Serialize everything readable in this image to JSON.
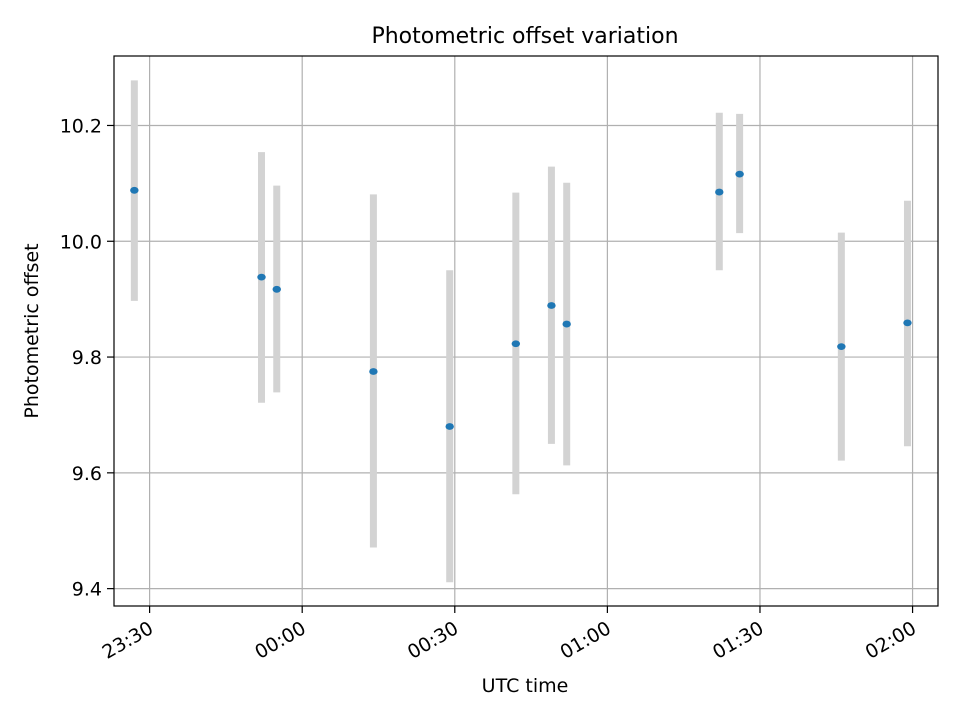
{
  "chart_data": {
    "type": "scatter",
    "title": "Photometric offset variation",
    "xlabel": "UTC time",
    "ylabel": "Photometric offset",
    "x_is_time": true,
    "xlim": [
      "23:23",
      "02:05"
    ],
    "ylim": [
      9.37,
      10.32
    ],
    "grid": true,
    "xticks": [
      {
        "value": "23:30",
        "label": "23:30"
      },
      {
        "value": "24:00",
        "label": "00:00"
      },
      {
        "value": "24:30",
        "label": "00:30"
      },
      {
        "value": "25:00",
        "label": "01:00"
      },
      {
        "value": "25:30",
        "label": "01:30"
      },
      {
        "value": "26:00",
        "label": "02:00"
      }
    ],
    "yticks": [
      9.4,
      9.6,
      9.8,
      10.0,
      10.2
    ],
    "ytick_labels": [
      "9.4",
      "9.6",
      "9.8",
      "10.0",
      "10.2"
    ],
    "points": [
      {
        "time": "23:27",
        "y": 10.088,
        "ylow": 9.897,
        "yhigh": 10.278
      },
      {
        "time": "23:52",
        "y": 9.938,
        "ylow": 9.721,
        "yhigh": 10.154
      },
      {
        "time": "23:55",
        "y": 9.917,
        "ylow": 9.739,
        "yhigh": 10.096
      },
      {
        "time": "00:14",
        "y": 9.775,
        "ylow": 9.471,
        "yhigh": 10.081
      },
      {
        "time": "00:29",
        "y": 9.68,
        "ylow": 9.411,
        "yhigh": 9.95
      },
      {
        "time": "00:42",
        "y": 9.823,
        "ylow": 9.563,
        "yhigh": 10.084
      },
      {
        "time": "00:49",
        "y": 9.889,
        "ylow": 9.65,
        "yhigh": 10.129
      },
      {
        "time": "00:52",
        "y": 9.857,
        "ylow": 9.613,
        "yhigh": 10.101
      },
      {
        "time": "01:22",
        "y": 10.085,
        "ylow": 9.95,
        "yhigh": 10.222
      },
      {
        "time": "01:26",
        "y": 10.116,
        "ylow": 10.014,
        "yhigh": 10.22
      },
      {
        "time": "01:46",
        "y": 9.818,
        "ylow": 9.621,
        "yhigh": 10.015
      },
      {
        "time": "01:59",
        "y": 9.859,
        "ylow": 9.646,
        "yhigh": 10.07
      }
    ],
    "colors": {
      "point": "#1f77b4",
      "errorbar": "#d3d3d3",
      "grid": "#b0b0b0",
      "axes": "#000000"
    }
  }
}
